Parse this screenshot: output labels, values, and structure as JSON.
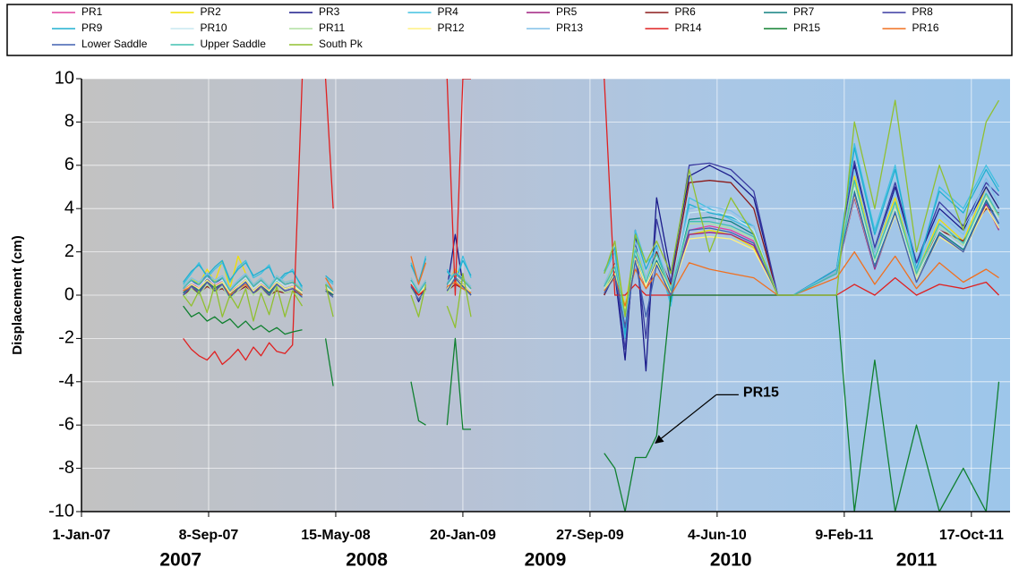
{
  "chart_data": {
    "type": "line",
    "ylabel": "Displacement (cm)",
    "x": [
      "2007-07-20",
      "2007-08-05",
      "2007-08-20",
      "2007-09-05",
      "2007-09-20",
      "2007-10-05",
      "2007-10-20",
      "2007-11-05",
      "2007-11-20",
      "2007-12-05",
      "2007-12-20",
      "2008-01-05",
      "2008-01-20",
      "2008-02-05",
      "2008-02-20",
      "2008-03-10",
      "2008-04-01",
      "2008-04-25",
      "2008-05-10",
      "2008-07-01",
      "2008-10-10",
      "2008-10-25",
      "2008-11-08",
      "2008-12-01",
      "2008-12-20",
      "2009-01-05",
      "2009-01-20",
      "2009-02-05",
      "2009-06-01",
      "2009-10-25",
      "2009-11-15",
      "2009-12-05",
      "2009-12-25",
      "2010-01-15",
      "2010-02-05",
      "2010-03-05",
      "2010-04-10",
      "2010-05-20",
      "2010-07-01",
      "2010-08-15",
      "2010-10-01",
      "2010-11-01",
      "2011-01-25",
      "2011-03-01",
      "2011-04-10",
      "2011-05-20",
      "2011-07-01",
      "2011-08-15",
      "2011-10-01",
      "2011-11-15",
      "2011-12-10"
    ],
    "series": [
      {
        "name": "PR1",
        "color": "#e040a0",
        "values": [
          0.2,
          0.6,
          0.3,
          0.9,
          0.4,
          0.7,
          0.1,
          0.5,
          0.8,
          0.3,
          0.6,
          0.2,
          0.7,
          0.4,
          0.5,
          0.1,
          null,
          0.4,
          0.1,
          null,
          0.6,
          0,
          0.5,
          null,
          0.4,
          1,
          0.6,
          0.2,
          null,
          0.3,
          1.2,
          -1,
          2,
          0.5,
          1.8,
          0.2,
          3,
          3.2,
          3,
          2.5,
          0,
          0,
          1,
          5,
          1.5,
          4,
          0.8,
          3,
          2.2,
          4.5,
          3.5
        ]
      },
      {
        "name": "PR2",
        "color": "#f0e000",
        "values": [
          0.4,
          0.8,
          0.5,
          1.2,
          0.6,
          1.6,
          0.3,
          1.8,
          1,
          0.5,
          0.8,
          0.4,
          0.9,
          0.6,
          0.7,
          0.2,
          null,
          0.5,
          0.2,
          null,
          0.8,
          0.2,
          0.7,
          null,
          0.5,
          1.2,
          0.8,
          0.3,
          null,
          0.5,
          1.5,
          -0.5,
          2.2,
          0.8,
          2,
          0.4,
          2.8,
          3,
          2.8,
          2.2,
          0,
          0,
          1,
          5.5,
          2,
          4.5,
          1,
          3.5,
          2.5,
          5,
          4
        ]
      },
      {
        "name": "PR3",
        "color": "#1a1a8a",
        "values": [
          0.2,
          0.5,
          0,
          0.8,
          0.3,
          0.6,
          0,
          0.4,
          0.7,
          0.2,
          0.5,
          0.1,
          0.6,
          0.3,
          0.4,
          0,
          null,
          0.3,
          0,
          null,
          0.5,
          -0.3,
          0.4,
          null,
          0.3,
          2.8,
          0.5,
          0,
          null,
          0,
          1,
          -3,
          3,
          -3.5,
          4.5,
          1,
          5.5,
          6,
          5.5,
          4.5,
          0,
          0,
          1.2,
          6,
          2,
          5,
          1.5,
          4,
          3,
          5,
          4
        ]
      },
      {
        "name": "PR4",
        "color": "#40c0e0",
        "values": [
          0.5,
          1,
          1.5,
          0.8,
          1.2,
          1.5,
          0.6,
          1.3,
          1.6,
          0.8,
          1,
          1.4,
          0.5,
          0.9,
          1.2,
          0.3,
          null,
          0.8,
          0.5,
          null,
          1.5,
          0.5,
          1.8,
          null,
          1.2,
          0.5,
          1.8,
          0.8,
          null,
          1,
          2,
          -2,
          3,
          1.5,
          2,
          -0.5,
          4.5,
          4,
          3.5,
          3,
          0,
          0,
          1.2,
          7,
          3,
          6,
          1,
          5,
          4,
          6,
          5
        ]
      },
      {
        "name": "PR5",
        "color": "#a02080",
        "values": [
          0.1,
          0.4,
          0.2,
          0.6,
          0.3,
          0.5,
          0,
          0.3,
          0.6,
          0.2,
          0.4,
          0.1,
          0.5,
          0.2,
          0.3,
          0,
          null,
          0.3,
          0,
          null,
          0.4,
          -0.2,
          0.3,
          null,
          0.2,
          0.8,
          0.4,
          0.1,
          null,
          0.2,
          1,
          -1.2,
          1.8,
          0.3,
          1.5,
          0.1,
          2.8,
          2.9,
          2.8,
          2.3,
          0,
          0,
          1,
          4.5,
          1.2,
          3.8,
          0.6,
          2.8,
          2,
          4.2,
          3
        ]
      },
      {
        "name": "PR6",
        "color": "#8b1a1a",
        "values": [
          0,
          0.3,
          0.1,
          0.4,
          0.2,
          0.3,
          0,
          0.2,
          0.4,
          0.1,
          0.3,
          0,
          0.2,
          0.1,
          0.2,
          0,
          null,
          0.2,
          0,
          null,
          0.3,
          0,
          0.2,
          null,
          0.2,
          0.5,
          0.3,
          0,
          null,
          0,
          1.5,
          -1.5,
          2,
          0.5,
          2,
          0.5,
          5.2,
          5.3,
          5.2,
          4,
          0,
          0,
          1.1,
          5,
          1.5,
          4,
          1,
          3,
          2.5,
          4,
          3.8
        ]
      },
      {
        "name": "PR7",
        "color": "#108080",
        "values": [
          0.1,
          0.5,
          0.2,
          0.7,
          0.3,
          0.6,
          0,
          0.4,
          0.7,
          0.2,
          0.5,
          0.1,
          0.6,
          0.3,
          0.4,
          0,
          null,
          0.3,
          0,
          null,
          0.5,
          0,
          0.4,
          null,
          0.3,
          0.9,
          0.5,
          0.1,
          null,
          0.2,
          1.1,
          -0.8,
          1.9,
          0.4,
          1.6,
          0.2,
          3.5,
          3.6,
          3.4,
          2.8,
          0,
          0,
          1,
          4.8,
          1.4,
          3.9,
          0.7,
          2.9,
          2.1,
          4.4,
          3.3
        ]
      },
      {
        "name": "PR8",
        "color": "#3a3aa0",
        "values": [
          0.3,
          0.7,
          0.4,
          1,
          0.5,
          0.8,
          0.2,
          0.6,
          0.9,
          0.4,
          0.7,
          0.3,
          0.8,
          0.5,
          0.6,
          0.2,
          null,
          0.5,
          0.2,
          null,
          0.7,
          0.1,
          0.6,
          null,
          0.5,
          1.1,
          0.7,
          0.3,
          null,
          0.4,
          1.3,
          -2.5,
          2.4,
          -2,
          3.5,
          0.6,
          6,
          6.1,
          5.8,
          4.8,
          0,
          0,
          1.2,
          6.2,
          2.2,
          5.2,
          1.5,
          4.3,
          3.2,
          5.2,
          4.6
        ]
      },
      {
        "name": "PR9",
        "color": "#20b0d0",
        "values": [
          0.6,
          1.1,
          1.4,
          0.9,
          1.3,
          1.6,
          0.7,
          1.2,
          1.5,
          0.9,
          1.1,
          1.3,
          0.6,
          1,
          1.1,
          0.4,
          null,
          0.9,
          0.6,
          null,
          1.4,
          0.6,
          1.7,
          null,
          1.1,
          0.6,
          1.6,
          0.9,
          null,
          1.1,
          2.2,
          -1.8,
          2.8,
          1.2,
          2.3,
          -0.3,
          4.2,
          3.8,
          3.6,
          3.2,
          0,
          0,
          1.2,
          6.8,
          2.8,
          5.8,
          1.2,
          4.8,
          3.8,
          5.8,
          4.8
        ]
      },
      {
        "name": "PR10",
        "color": "#c8e8f0",
        "values": [
          0.3,
          0.6,
          0.4,
          0.8,
          0.5,
          0.7,
          0.2,
          0.5,
          0.8,
          0.3,
          0.6,
          0.3,
          0.7,
          0.4,
          0.5,
          0.1,
          null,
          0.4,
          0.1,
          null,
          0.6,
          0,
          0.5,
          null,
          0.4,
          0.9,
          0.6,
          0.2,
          null,
          0.3,
          1.2,
          -1,
          2,
          0.5,
          1.8,
          0.2,
          3.8,
          3.9,
          3.7,
          3,
          0,
          0,
          1,
          5,
          1.5,
          4,
          0.8,
          3,
          2.2,
          4.5,
          3.5
        ]
      },
      {
        "name": "PR11",
        "color": "#b0e0a0",
        "values": [
          -0.2,
          0.3,
          0,
          0.5,
          0.1,
          0.4,
          -0.2,
          0.2,
          0.5,
          0,
          0.3,
          -0.1,
          0.4,
          0.1,
          0.2,
          -0.2,
          null,
          0.2,
          -0.1,
          null,
          0.3,
          -0.2,
          0.2,
          null,
          0.1,
          0.7,
          0.3,
          0,
          null,
          0.2,
          1.4,
          -0.8,
          2.2,
          0.6,
          1.9,
          0.1,
          3.3,
          3.3,
          3.1,
          2.6,
          0,
          0,
          1,
          5.2,
          1.6,
          4.2,
          0.9,
          3.2,
          2.3,
          4.6,
          3.6
        ]
      },
      {
        "name": "PR12",
        "color": "#fff080",
        "values": [
          0.2,
          0.5,
          0.3,
          0.7,
          0.4,
          0.6,
          0.1,
          0.4,
          0.7,
          0.2,
          0.5,
          0.2,
          0.6,
          0.3,
          0.4,
          0.1,
          null,
          0.3,
          0.1,
          null,
          0.5,
          0,
          0.4,
          null,
          0.3,
          0.8,
          0.5,
          0.1,
          null,
          0.2,
          1,
          -0.6,
          1.7,
          0.4,
          1.5,
          0.1,
          2.6,
          2.7,
          2.6,
          2.1,
          0,
          0,
          1,
          4.6,
          1.3,
          3.7,
          0.7,
          2.7,
          2,
          4.1,
          3.1
        ]
      },
      {
        "name": "PR13",
        "color": "#80c0e8",
        "values": [
          0.4,
          0.8,
          0.6,
          1,
          0.7,
          0.9,
          0.3,
          0.7,
          1,
          0.5,
          0.8,
          0.4,
          0.9,
          0.6,
          0.7,
          0.3,
          null,
          0.6,
          0.3,
          null,
          0.8,
          0.2,
          0.7,
          null,
          0.6,
          1.1,
          0.8,
          0.4,
          null,
          0.5,
          1.6,
          -1.2,
          2.5,
          0.8,
          2.2,
          0.3,
          4,
          4.1,
          3.9,
          3.2,
          0,
          0,
          1.1,
          5.8,
          2,
          4.8,
          1.1,
          3.8,
          2.8,
          5.4,
          4.2
        ]
      },
      {
        "name": "PR14",
        "color": "#e02020",
        "values": [
          -2,
          -2.5,
          -2.8,
          -3,
          -2.6,
          -3.2,
          -2.9,
          -2.5,
          -3,
          -2.4,
          -2.8,
          -2.2,
          -2.6,
          -2.7,
          -2.3,
          10,
          null,
          10,
          4,
          null,
          0.5,
          0,
          0.3,
          null,
          10,
          0,
          10,
          10,
          null,
          10,
          0,
          0,
          0.5,
          0,
          0,
          0,
          0,
          0,
          0,
          0,
          0,
          0,
          0,
          0.5,
          0,
          0.8,
          0,
          0.5,
          0.3,
          0.6,
          0
        ]
      },
      {
        "name": "PR15",
        "color": "#108030",
        "values": [
          -0.5,
          -1,
          -0.8,
          -1.2,
          -1,
          -1.3,
          -1.1,
          -1.5,
          -1.2,
          -1.6,
          -1.4,
          -1.7,
          -1.5,
          -1.8,
          -1.7,
          -1.6,
          null,
          -2,
          -4.2,
          null,
          -4,
          -5.8,
          -6,
          null,
          -6,
          -2,
          -6.2,
          -6.2,
          null,
          -7.3,
          -8,
          -10,
          -7.5,
          -7.5,
          -6.5,
          0,
          0,
          0,
          0,
          0,
          0,
          0,
          0,
          -10,
          -3,
          -10,
          -6,
          -10,
          -8,
          -10,
          -4
        ]
      },
      {
        "name": "PR16",
        "color": "#f07020",
        "values": [
          0.2,
          0.4,
          0.1,
          0.6,
          0.2,
          0.5,
          0,
          0.3,
          0.5,
          0.1,
          0.4,
          0,
          0.5,
          0.2,
          0.3,
          0,
          null,
          0.8,
          0.2,
          null,
          1.8,
          0.5,
          1.5,
          null,
          0.4,
          0.6,
          0.3,
          0.1,
          null,
          0.2,
          0.8,
          -0.5,
          1.2,
          0.3,
          1,
          0,
          1.5,
          1.2,
          1,
          0.8,
          0,
          0,
          0.8,
          2,
          0.5,
          1.8,
          0.3,
          1.5,
          0.6,
          1.2,
          0.8
        ]
      },
      {
        "name": "Lower Saddle",
        "color": "#4060b0",
        "values": [
          0,
          0.4,
          0.1,
          0.6,
          0.2,
          0.5,
          -0.1,
          0.3,
          0.6,
          0.1,
          0.4,
          0,
          0.5,
          0.2,
          0.3,
          -0.1,
          null,
          0.2,
          -0.1,
          null,
          0.4,
          -0.2,
          0.3,
          null,
          0.2,
          0.8,
          0.4,
          0,
          null,
          0.1,
          0.9,
          -1.5,
          1.6,
          -1,
          1.4,
          0,
          3,
          3.1,
          2.9,
          2.4,
          0,
          0,
          1,
          4.7,
          1.3,
          3.8,
          0.6,
          2.8,
          2,
          4.3,
          3.3
        ]
      },
      {
        "name": "Upper Saddle",
        "color": "#40c0b0",
        "values": [
          0.3,
          0.7,
          0.5,
          0.9,
          0.6,
          0.8,
          0.2,
          0.6,
          0.9,
          0.4,
          0.7,
          0.3,
          0.8,
          0.5,
          0.6,
          0.2,
          null,
          0.5,
          0.2,
          null,
          0.7,
          0.1,
          0.6,
          null,
          0.5,
          1,
          0.7,
          0.3,
          null,
          0.4,
          1.3,
          -0.9,
          2.1,
          0.6,
          1.9,
          0.2,
          3.4,
          3.4,
          3.2,
          2.7,
          0,
          0,
          1,
          5.3,
          1.7,
          4.3,
          1,
          3.3,
          2.4,
          4.7,
          3.7
        ]
      },
      {
        "name": "South Pk",
        "color": "#90c030",
        "values": [
          0,
          -0.5,
          0.2,
          -0.8,
          0.5,
          -1,
          0,
          -0.6,
          0.3,
          -1.2,
          0.1,
          -0.9,
          0.4,
          -1,
          0.2,
          -0.5,
          null,
          0.5,
          -1,
          null,
          0,
          -1,
          0.5,
          null,
          -0.5,
          -1.5,
          1,
          -1,
          null,
          1,
          2.5,
          -1,
          2.8,
          1.5,
          2.5,
          1,
          5.8,
          2,
          4.5,
          2.8,
          0,
          0,
          0,
          8,
          4,
          9,
          2,
          6,
          3,
          8,
          9
        ]
      }
    ],
    "xlim": [
      "2007-01-01",
      "2012-01-01"
    ],
    "xticks": [
      {
        "value": "2007-01-01",
        "label": "1-Jan-07"
      },
      {
        "value": "2007-09-08",
        "label": "8-Sep-07"
      },
      {
        "value": "2008-05-15",
        "label": "15-May-08"
      },
      {
        "value": "2009-01-20",
        "label": "20-Jan-09"
      },
      {
        "value": "2009-09-27",
        "label": "27-Sep-09"
      },
      {
        "value": "2010-06-04",
        "label": "4-Jun-10"
      },
      {
        "value": "2011-02-09",
        "label": "9-Feb-11"
      },
      {
        "value": "2011-10-17",
        "label": "17-Oct-11"
      }
    ],
    "year_labels": [
      {
        "value": "2007-07-15",
        "label": "2007"
      },
      {
        "value": "2008-07-15",
        "label": "2008"
      },
      {
        "value": "2009-07-01",
        "label": "2009"
      },
      {
        "value": "2010-07-01",
        "label": "2010"
      },
      {
        "value": "2011-07-01",
        "label": "2011"
      }
    ],
    "ylim": [
      -10,
      10
    ],
    "yticks": [
      -10,
      -8,
      -6,
      -4,
      -2,
      0,
      2,
      4,
      6,
      8,
      10
    ],
    "grid": true,
    "legend": "top",
    "annotations": [
      {
        "text": "PR15",
        "x": "2010-01-30",
        "y": -7
      }
    ]
  }
}
